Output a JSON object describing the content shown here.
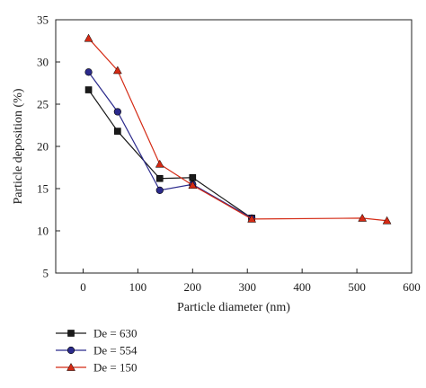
{
  "chart_data": {
    "type": "line",
    "xlabel": "Particle diameter (nm)",
    "ylabel": "Particle deposition (%)",
    "xlim": [
      -50,
      600
    ],
    "ylim": [
      5,
      35
    ],
    "xticks": [
      0,
      100,
      200,
      300,
      400,
      500,
      600
    ],
    "yticks": [
      5,
      10,
      15,
      20,
      25,
      30,
      35
    ],
    "grid": false,
    "legend_position": "bottom-left, below plot",
    "series": [
      {
        "name": "De = 630",
        "marker": "square",
        "color": "#1a1a1a",
        "x": [
          10,
          63,
          140,
          200,
          308
        ],
        "y": [
          26.7,
          21.8,
          16.2,
          16.3,
          11.5
        ]
      },
      {
        "name": "De = 554",
        "marker": "circle",
        "color": "#2b2a8c",
        "x": [
          10,
          63,
          140,
          200,
          308
        ],
        "y": [
          28.8,
          24.1,
          14.8,
          15.5,
          11.5
        ]
      },
      {
        "name": "De = 150",
        "marker": "triangle",
        "color": "#d42a14",
        "x": [
          10,
          63,
          140,
          200,
          308,
          510,
          555
        ],
        "y": [
          32.8,
          29.0,
          17.9,
          15.4,
          11.4,
          11.5,
          11.2
        ]
      }
    ]
  }
}
